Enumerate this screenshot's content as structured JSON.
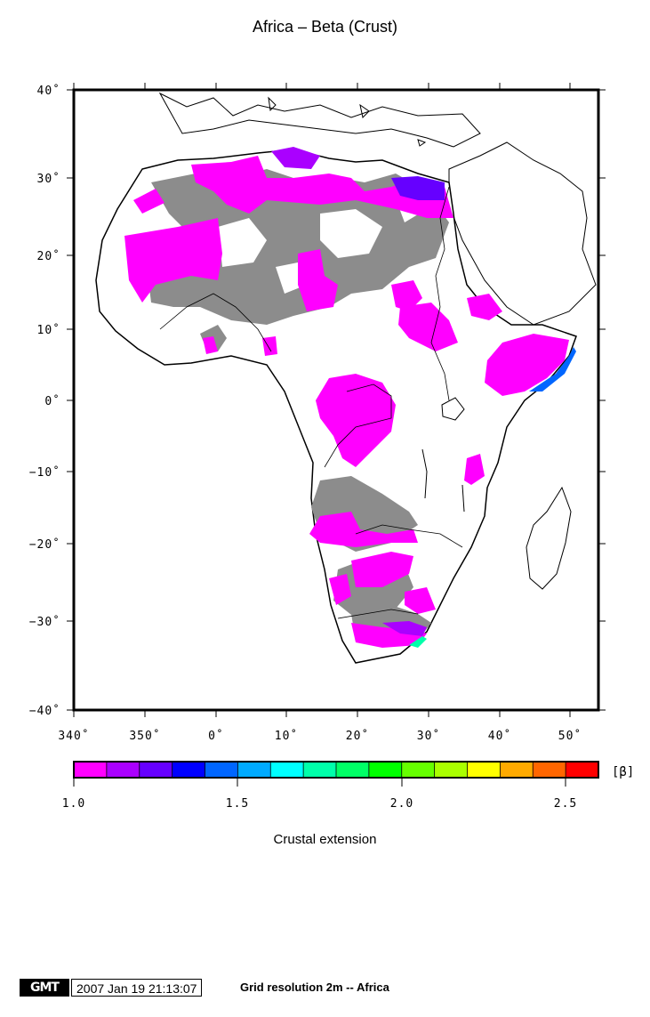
{
  "title": "Africa – Beta (Crust)",
  "map": {
    "region": "Africa",
    "lat_labels": [
      "40˚",
      "30˚",
      "20˚",
      "10˚",
      "0˚",
      "−10˚",
      "−20˚",
      "−30˚",
      "−40˚"
    ],
    "lon_labels": [
      "340˚",
      "350˚",
      "0˚",
      "10˚",
      "20˚",
      "30˚",
      "40˚",
      "50˚"
    ],
    "land_color": "#ffffff",
    "unextended_color": "#8c8c8c",
    "coast_color": "#000000"
  },
  "colorbar": {
    "colors": [
      "#ff00ff",
      "#aa00ff",
      "#6600ff",
      "#0000ff",
      "#0066ff",
      "#00aaff",
      "#00ffff",
      "#00ffaa",
      "#00ff66",
      "#00ff00",
      "#66ff00",
      "#aaff00",
      "#ffff00",
      "#ffaa00",
      "#ff6600",
      "#ff0000"
    ],
    "tick_labels": [
      "1.0",
      "1.5",
      "2.0",
      "2.5"
    ],
    "unit": "[β]",
    "label": "Crustal extension"
  },
  "footer": {
    "logo": "GMT",
    "timestamp": "2007 Jan 19 21:13:07",
    "note": "Grid resolution 2m -- Africa"
  }
}
